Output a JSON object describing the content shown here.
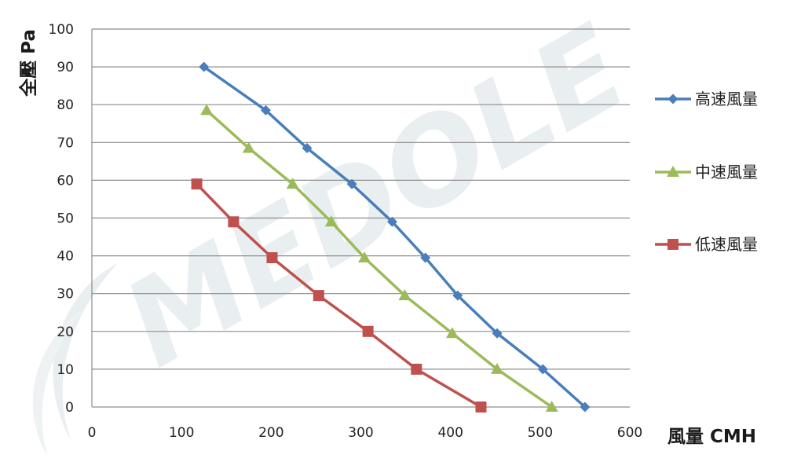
{
  "chart_data": {
    "type": "line",
    "xlabel": "風量 CMH",
    "ylabel": "全壓 Pa",
    "xlim": [
      0,
      600
    ],
    "ylim": [
      0,
      100
    ],
    "x_ticks": [
      0,
      100,
      200,
      300,
      400,
      500,
      600
    ],
    "y_ticks": [
      0,
      10,
      20,
      30,
      40,
      50,
      60,
      70,
      80,
      90,
      100
    ],
    "grid": "horizontal",
    "legend_position": "right",
    "watermark": "MEDOLE",
    "series": [
      {
        "name": "高速風量",
        "color": "#4a7ebb",
        "marker": "diamond",
        "x": [
          125,
          194,
          240,
          290,
          335,
          372,
          408,
          452,
          503,
          550
        ],
        "y": [
          90,
          78.5,
          68.5,
          59,
          49,
          39.5,
          29.5,
          19.5,
          10,
          0
        ]
      },
      {
        "name": "中速風量",
        "color": "#9bbb59",
        "marker": "triangle",
        "x": [
          128,
          175,
          224,
          267,
          304,
          349,
          402,
          452,
          513
        ],
        "y": [
          78.5,
          68.5,
          59,
          49,
          39.5,
          29.5,
          19.5,
          10,
          0
        ]
      },
      {
        "name": "低速風量",
        "color": "#c0504d",
        "marker": "square",
        "x": [
          117,
          158,
          201,
          253,
          308,
          362,
          434
        ],
        "y": [
          59,
          49,
          39.5,
          29.5,
          20,
          10,
          0
        ]
      }
    ]
  }
}
